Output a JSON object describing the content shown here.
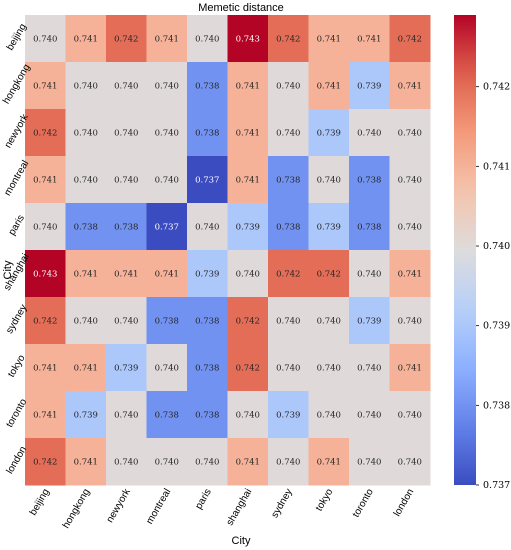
{
  "chart_data": {
    "type": "heatmap",
    "title": "Memetic distance",
    "xlabel": "City",
    "ylabel": "City",
    "x_categories": [
      "beijing",
      "hongkong",
      "newyork",
      "montreal",
      "paris",
      "shanghai",
      "sydney",
      "tokyo",
      "toronto",
      "london"
    ],
    "y_categories": [
      "beijing",
      "hongkong",
      "newyork",
      "montreal",
      "paris",
      "shanghai",
      "sydney",
      "tokyo",
      "toronto",
      "london"
    ],
    "values": [
      [
        0.74,
        0.741,
        0.742,
        0.741,
        0.74,
        0.743,
        0.742,
        0.741,
        0.741,
        0.742
      ],
      [
        0.741,
        0.74,
        0.74,
        0.74,
        0.738,
        0.741,
        0.74,
        0.741,
        0.739,
        0.741
      ],
      [
        0.742,
        0.74,
        0.74,
        0.74,
        0.738,
        0.741,
        0.74,
        0.739,
        0.74,
        0.74
      ],
      [
        0.741,
        0.74,
        0.74,
        0.74,
        0.737,
        0.741,
        0.738,
        0.74,
        0.738,
        0.74
      ],
      [
        0.74,
        0.738,
        0.738,
        0.737,
        0.74,
        0.739,
        0.738,
        0.739,
        0.738,
        0.74
      ],
      [
        0.743,
        0.741,
        0.741,
        0.741,
        0.739,
        0.74,
        0.742,
        0.742,
        0.74,
        0.741
      ],
      [
        0.742,
        0.74,
        0.74,
        0.738,
        0.738,
        0.742,
        0.74,
        0.74,
        0.739,
        0.74
      ],
      [
        0.741,
        0.741,
        0.739,
        0.74,
        0.738,
        0.742,
        0.74,
        0.74,
        0.74,
        0.741
      ],
      [
        0.741,
        0.739,
        0.74,
        0.738,
        0.738,
        0.74,
        0.739,
        0.74,
        0.74,
        0.74
      ],
      [
        0.742,
        0.741,
        0.74,
        0.74,
        0.74,
        0.741,
        0.74,
        0.741,
        0.74,
        0.74
      ]
    ],
    "colormap": "coolwarm",
    "color_range": [
      0.737,
      0.7429
    ],
    "colorbar_ticks": [
      "0.742",
      "0.741",
      "0.740",
      "0.739",
      "0.738",
      "0.737"
    ],
    "colorbar_tick_values": [
      0.742,
      0.741,
      0.74,
      0.739,
      0.738,
      0.737
    ],
    "annotations": "cell values shown with 3 decimals",
    "legend": "colorbar-right",
    "grid": false
  }
}
